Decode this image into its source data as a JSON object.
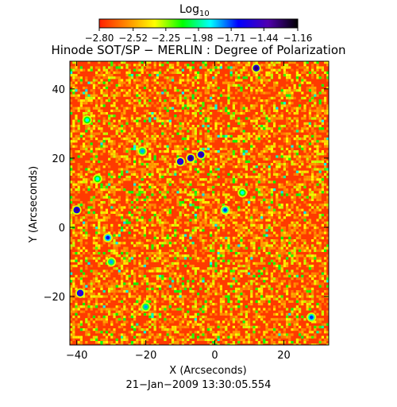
{
  "chart_data": {
    "type": "heatmap",
    "title": "Hinode SOT/SP − MERLIN : Degree of Polarization",
    "xlabel": "X (Arcseconds)",
    "ylabel": "Y (Arcseconds)",
    "xlim": [
      -42,
      33
    ],
    "ylim": [
      -34,
      48
    ],
    "x_ticks": [
      -40,
      -20,
      0,
      20
    ],
    "x_tick_labels": [
      "−40",
      "−20",
      "0",
      "20"
    ],
    "y_ticks": [
      -20,
      0,
      20,
      40
    ],
    "y_tick_labels": [
      "−20",
      "0",
      "20",
      "40"
    ],
    "colorbar": {
      "label_base": "Log",
      "label_subscript": "10",
      "range": [
        -2.8,
        -1.16
      ],
      "ticks": [
        -2.8,
        -2.52,
        -2.25,
        -1.98,
        -1.71,
        -1.44,
        -1.16
      ],
      "tick_labels": [
        "−2.80",
        "−2.52",
        "−2.25",
        "−1.98",
        "−1.71",
        "−1.44",
        "−1.16"
      ],
      "colormap_stops": [
        "#ff1f00",
        "#ff8c00",
        "#ffff00",
        "#00ff00",
        "#00ffff",
        "#0000ff",
        "#5000b0",
        "#000000"
      ]
    },
    "timestamp": "21−Jan−2009 13:30:05.554",
    "grid": false,
    "features": [
      {
        "x": -7,
        "y": 20,
        "value": -1.3
      },
      {
        "x": -10,
        "y": 19,
        "value": -1.4
      },
      {
        "x": -4,
        "y": 21,
        "value": -1.35
      },
      {
        "x": -37,
        "y": 31,
        "value": -1.9
      },
      {
        "x": -34,
        "y": 14,
        "value": -1.9
      },
      {
        "x": -40,
        "y": 5,
        "value": -1.35
      },
      {
        "x": -31,
        "y": -3,
        "value": -1.6
      },
      {
        "x": -30,
        "y": -10,
        "value": -1.8
      },
      {
        "x": -39,
        "y": -19,
        "value": -1.4
      },
      {
        "x": 12,
        "y": 46,
        "value": -1.3
      },
      {
        "x": 3,
        "y": 5,
        "value": -1.7
      },
      {
        "x": -21,
        "y": 22,
        "value": -1.8
      },
      {
        "x": 28,
        "y": -26,
        "value": -1.7
      },
      {
        "x": -20,
        "y": -23,
        "value": -1.8
      },
      {
        "x": 8,
        "y": 10,
        "value": -1.9
      }
    ]
  }
}
